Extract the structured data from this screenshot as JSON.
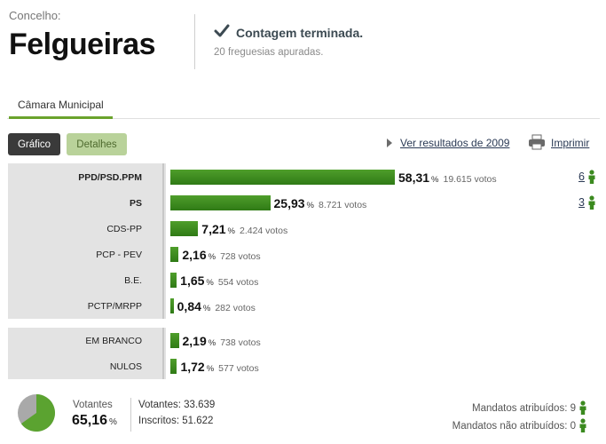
{
  "header": {
    "concelho_label": "Concelho:",
    "concelho_name": "Felgueiras",
    "status_title": "Contagem terminada.",
    "status_sub": "20 freguesias apuradas."
  },
  "tabs": [
    {
      "label": "Câmara Municipal"
    }
  ],
  "buttons": {
    "grafico": "Gráfico",
    "detalhes": "Detalhes",
    "ver_2009": "Ver resultados de 2009",
    "imprimir": "Imprimir"
  },
  "parties": [
    {
      "name": "PPD/PSD.PPM",
      "pct": "58,31",
      "votos": "19.615 votos",
      "mandatos": "6"
    },
    {
      "name": "PS",
      "pct": "25,93",
      "votos": "8.721 votos",
      "mandatos": "3"
    },
    {
      "name": "CDS-PP",
      "pct": "7,21",
      "votos": "2.424 votos"
    },
    {
      "name": "PCP - PEV",
      "pct": "2,16",
      "votos": "728 votos"
    },
    {
      "name": "B.E.",
      "pct": "1,65",
      "votos": "554 votos"
    },
    {
      "name": "PCTP/MRPP",
      "pct": "0,84",
      "votos": "282 votos"
    }
  ],
  "other": [
    {
      "name": "EM BRANCO",
      "pct": "2,19",
      "votos": "738 votos"
    },
    {
      "name": "NULOS",
      "pct": "1,72",
      "votos": "577 votos"
    }
  ],
  "pct_symbol": "%",
  "footer": {
    "votantes_label": "Votantes",
    "votantes_pct": "65,16",
    "votantes_count": "Votantes: 33.639",
    "inscritos_count": "Inscritos: 51.622",
    "mandatos_atribuidos": "Mandatos atribuídos: 9",
    "mandatos_nao_atribuidos": "Mandatos não atribuídos: 0"
  },
  "chart_data": {
    "type": "bar",
    "categories": [
      "PPD/PSD.PPM",
      "PS",
      "CDS-PP",
      "PCP - PEV",
      "B.E.",
      "PCTP/MRPP",
      "EM BRANCO",
      "NULOS"
    ],
    "values": [
      58.31,
      25.93,
      7.21,
      2.16,
      1.65,
      0.84,
      2.19,
      1.72
    ],
    "turnout_pct": 65.16
  },
  "colors": {
    "bar": "#3b8a1f",
    "accent": "#6aa32c",
    "pie_green": "#5ba330",
    "pie_grey": "#a9a9a9"
  },
  "icons": {
    "status": "check-icon",
    "play": "play-icon",
    "print": "printer-icon",
    "mandate": "person-icon",
    "turnout": "pie-icon"
  }
}
